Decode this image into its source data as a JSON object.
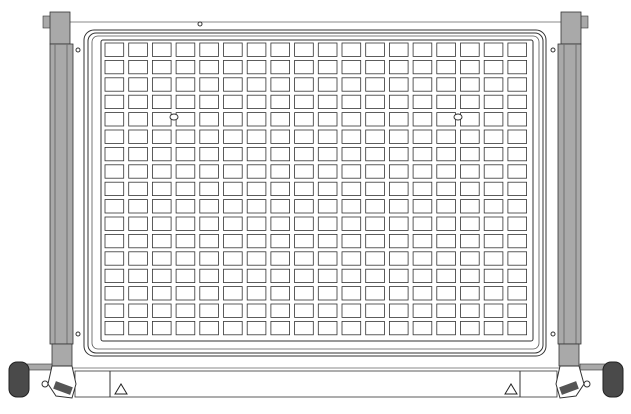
{
  "drawing": {
    "colors": {
      "line": "#333333",
      "frame_fill": "#a9a9a9",
      "frame_dark": "#6e6e6e",
      "roller": "#4a4a4a",
      "background": "#ffffff"
    },
    "icons": [
      "warning-triangle-icon",
      "warning-triangle-icon"
    ]
  }
}
